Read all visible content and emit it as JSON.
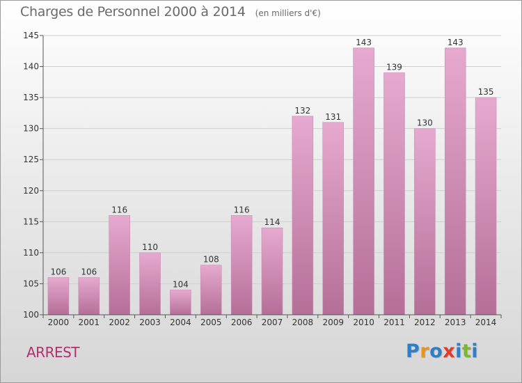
{
  "header": {
    "title": "Charges de Personnel 2000 à 2014",
    "subtitle": "(en milliers d'€)"
  },
  "footer": {
    "city": "ARREST",
    "logo_letters": [
      {
        "char": "P",
        "color": "#2f7fc8"
      },
      {
        "char": "r",
        "color": "#e8931a"
      },
      {
        "char": "o",
        "color": "#2f7fc8"
      },
      {
        "char": "x",
        "color": "#e23a2e"
      },
      {
        "char": "i",
        "color": "#2f7fc8"
      },
      {
        "char": "t",
        "color": "#7cb82f"
      },
      {
        "char": "i",
        "color": "#2f7fc8"
      }
    ]
  },
  "colors": {
    "bar_light": "#e6a9cf",
    "bar_dark": "#b46f97",
    "bar_edge": "#c98fb3",
    "grid": "#cfcfcf",
    "axis": "#555555",
    "text": "#333333",
    "city": "#b0306e"
  },
  "chart_data": {
    "type": "bar",
    "title": "Charges de Personnel 2000 à 2014",
    "subtitle": "(en milliers d'€)",
    "categories": [
      "2000",
      "2001",
      "2002",
      "2003",
      "2004",
      "2005",
      "2006",
      "2007",
      "2008",
      "2009",
      "2010",
      "2011",
      "2012",
      "2013",
      "2014"
    ],
    "values": [
      106,
      106,
      116,
      110,
      104,
      108,
      116,
      114,
      132,
      131,
      143,
      139,
      130,
      143,
      135
    ],
    "ylim": [
      100,
      145
    ],
    "yticks": [
      100,
      105,
      110,
      115,
      120,
      125,
      130,
      135,
      140,
      145
    ],
    "grid": true,
    "data_labels": true
  }
}
